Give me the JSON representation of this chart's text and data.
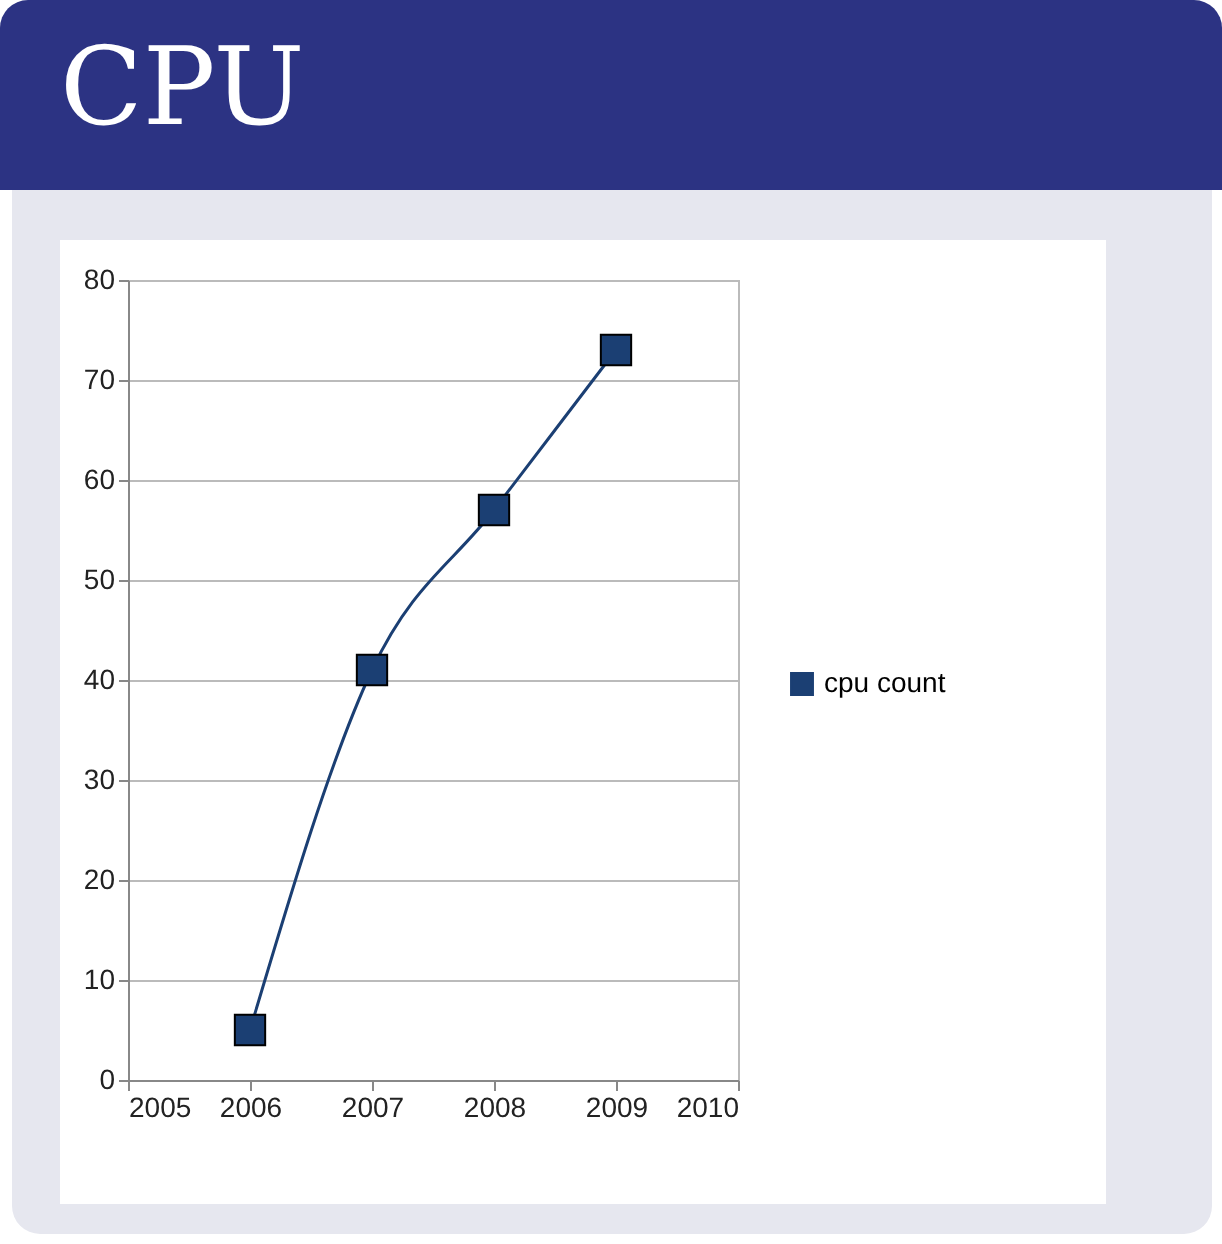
{
  "chart_data": {
    "type": "line",
    "title": "CPU",
    "x": [
      2006,
      2007,
      2008,
      2009
    ],
    "series": [
      {
        "name": "cpu count",
        "color": "#1b3f73",
        "values": [
          5,
          41,
          57,
          73
        ]
      }
    ],
    "xlim": [
      2005,
      2010
    ],
    "xticks": [
      2005,
      2006,
      2007,
      2008,
      2009,
      2010
    ],
    "ylim": [
      0,
      80
    ],
    "yticks": [
      0,
      10,
      20,
      30,
      40,
      50,
      60,
      70,
      80
    ],
    "grid": "y",
    "legend": "right",
    "marker": "square",
    "line_style": "solid"
  }
}
